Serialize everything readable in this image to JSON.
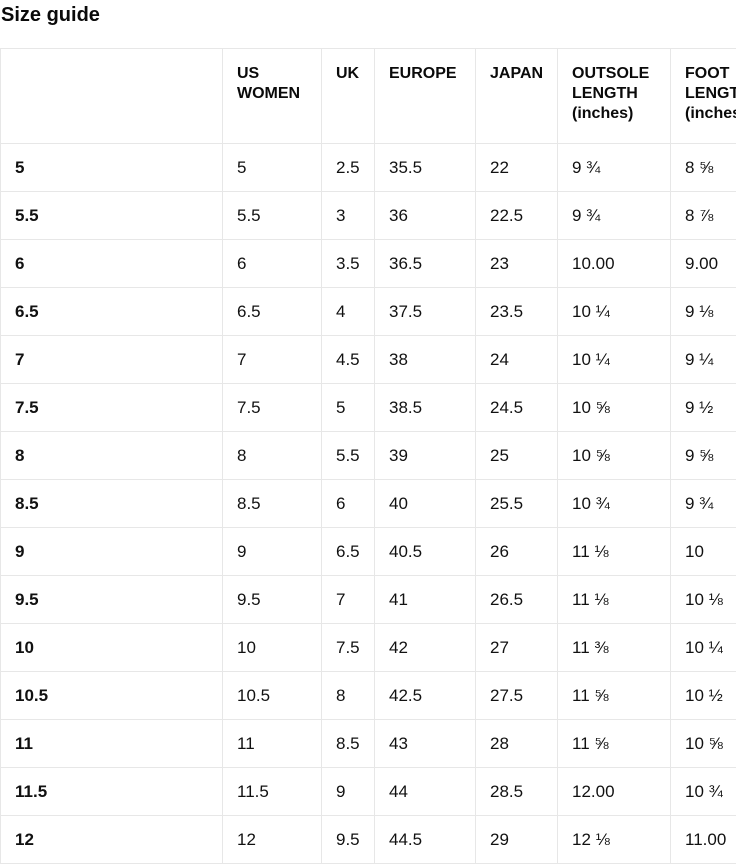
{
  "page": {
    "title": "Size guide"
  },
  "colors": {
    "background": "#ffffff",
    "text": "#111111",
    "border": "#e7e7e7"
  },
  "table": {
    "columns": [
      "",
      "US WOMEN",
      "UK",
      "EUROPE",
      "JAPAN",
      "OUTSOLE LENGTH (inches)",
      "FOOT LENGTH (inches)"
    ],
    "rows": [
      [
        "5",
        "5",
        "2.5",
        "35.5",
        "22",
        "9 ¾",
        "8 ⅝"
      ],
      [
        "5.5",
        "5.5",
        "3",
        "36",
        "22.5",
        "9 ¾",
        "8 ⅞"
      ],
      [
        "6",
        "6",
        "3.5",
        "36.5",
        "23",
        "10.00",
        "9.00"
      ],
      [
        "6.5",
        "6.5",
        "4",
        "37.5",
        "23.5",
        "10 ¼",
        "9 ⅛"
      ],
      [
        "7",
        "7",
        "4.5",
        "38",
        "24",
        "10 ¼",
        "9 ¼"
      ],
      [
        "7.5",
        "7.5",
        "5",
        "38.5",
        "24.5",
        "10 ⅝",
        "9 ½"
      ],
      [
        "8",
        "8",
        "5.5",
        "39",
        "25",
        "10 ⅝",
        "9 ⅝"
      ],
      [
        "8.5",
        "8.5",
        "6",
        "40",
        "25.5",
        "10 ¾",
        "9 ¾"
      ],
      [
        "9",
        "9",
        "6.5",
        "40.5",
        "26",
        "11 ⅛",
        "10"
      ],
      [
        "9.5",
        "9.5",
        "7",
        "41",
        "26.5",
        "11 ⅛",
        "10 ⅛"
      ],
      [
        "10",
        "10",
        "7.5",
        "42",
        "27",
        "11 ⅜",
        "10 ¼"
      ],
      [
        "10.5",
        "10.5",
        "8",
        "42.5",
        "27.5",
        "11 ⅝",
        "10 ½"
      ],
      [
        "11",
        "11",
        "8.5",
        "43",
        "28",
        "11 ⅝",
        "10 ⅝"
      ],
      [
        "11.5",
        "11.5",
        "9",
        "44",
        "28.5",
        "12.00",
        "10 ¾"
      ],
      [
        "12",
        "12",
        "9.5",
        "44.5",
        "29",
        "12 ⅛",
        "11.00"
      ]
    ]
  }
}
